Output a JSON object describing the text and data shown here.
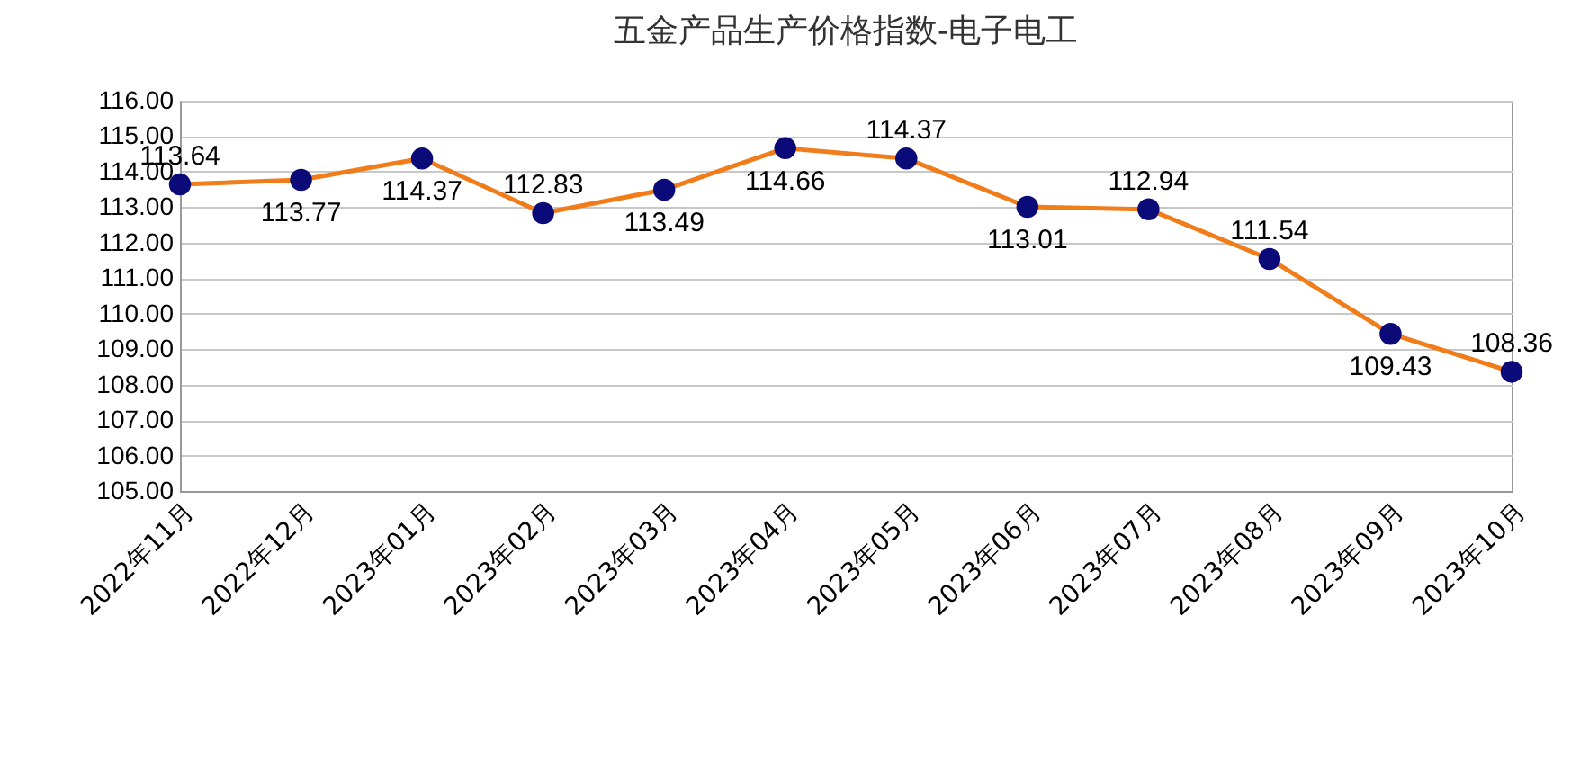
{
  "chart_data": {
    "type": "line",
    "title": "五金产品生产价格指数-电子电工",
    "categories": [
      "2022年11月",
      "2022年12月",
      "2023年01月",
      "2023年02月",
      "2023年03月",
      "2023年04月",
      "2023年05月",
      "2023年06月",
      "2023年07月",
      "2023年08月",
      "2023年09月",
      "2023年10月"
    ],
    "series": [
      {
        "color": "#f07c1a",
        "values": [
          113.64,
          113.77,
          114.37,
          112.83,
          113.49,
          114.66,
          114.37,
          113.01,
          112.94,
          111.54,
          109.43,
          108.36
        ]
      }
    ],
    "ylim": [
      105,
      116
    ],
    "yticks": [
      {
        "value": 105,
        "label": "105.00"
      },
      {
        "value": 106,
        "label": "106.00"
      },
      {
        "value": 107,
        "label": "107.00"
      },
      {
        "value": 108,
        "label": "108.00"
      },
      {
        "value": 109,
        "label": "109.00"
      },
      {
        "value": 110,
        "label": "110.00"
      },
      {
        "value": 111,
        "label": "111.00"
      },
      {
        "value": 112,
        "label": "112.00"
      },
      {
        "value": 113,
        "label": "113.00"
      },
      {
        "value": 114,
        "label": "114.00"
      },
      {
        "value": 115,
        "label": "115.00"
      },
      {
        "value": 116,
        "label": "116.00"
      }
    ],
    "grid": "y",
    "marker": "circle",
    "line_style": "solid",
    "data_labels": true
  }
}
